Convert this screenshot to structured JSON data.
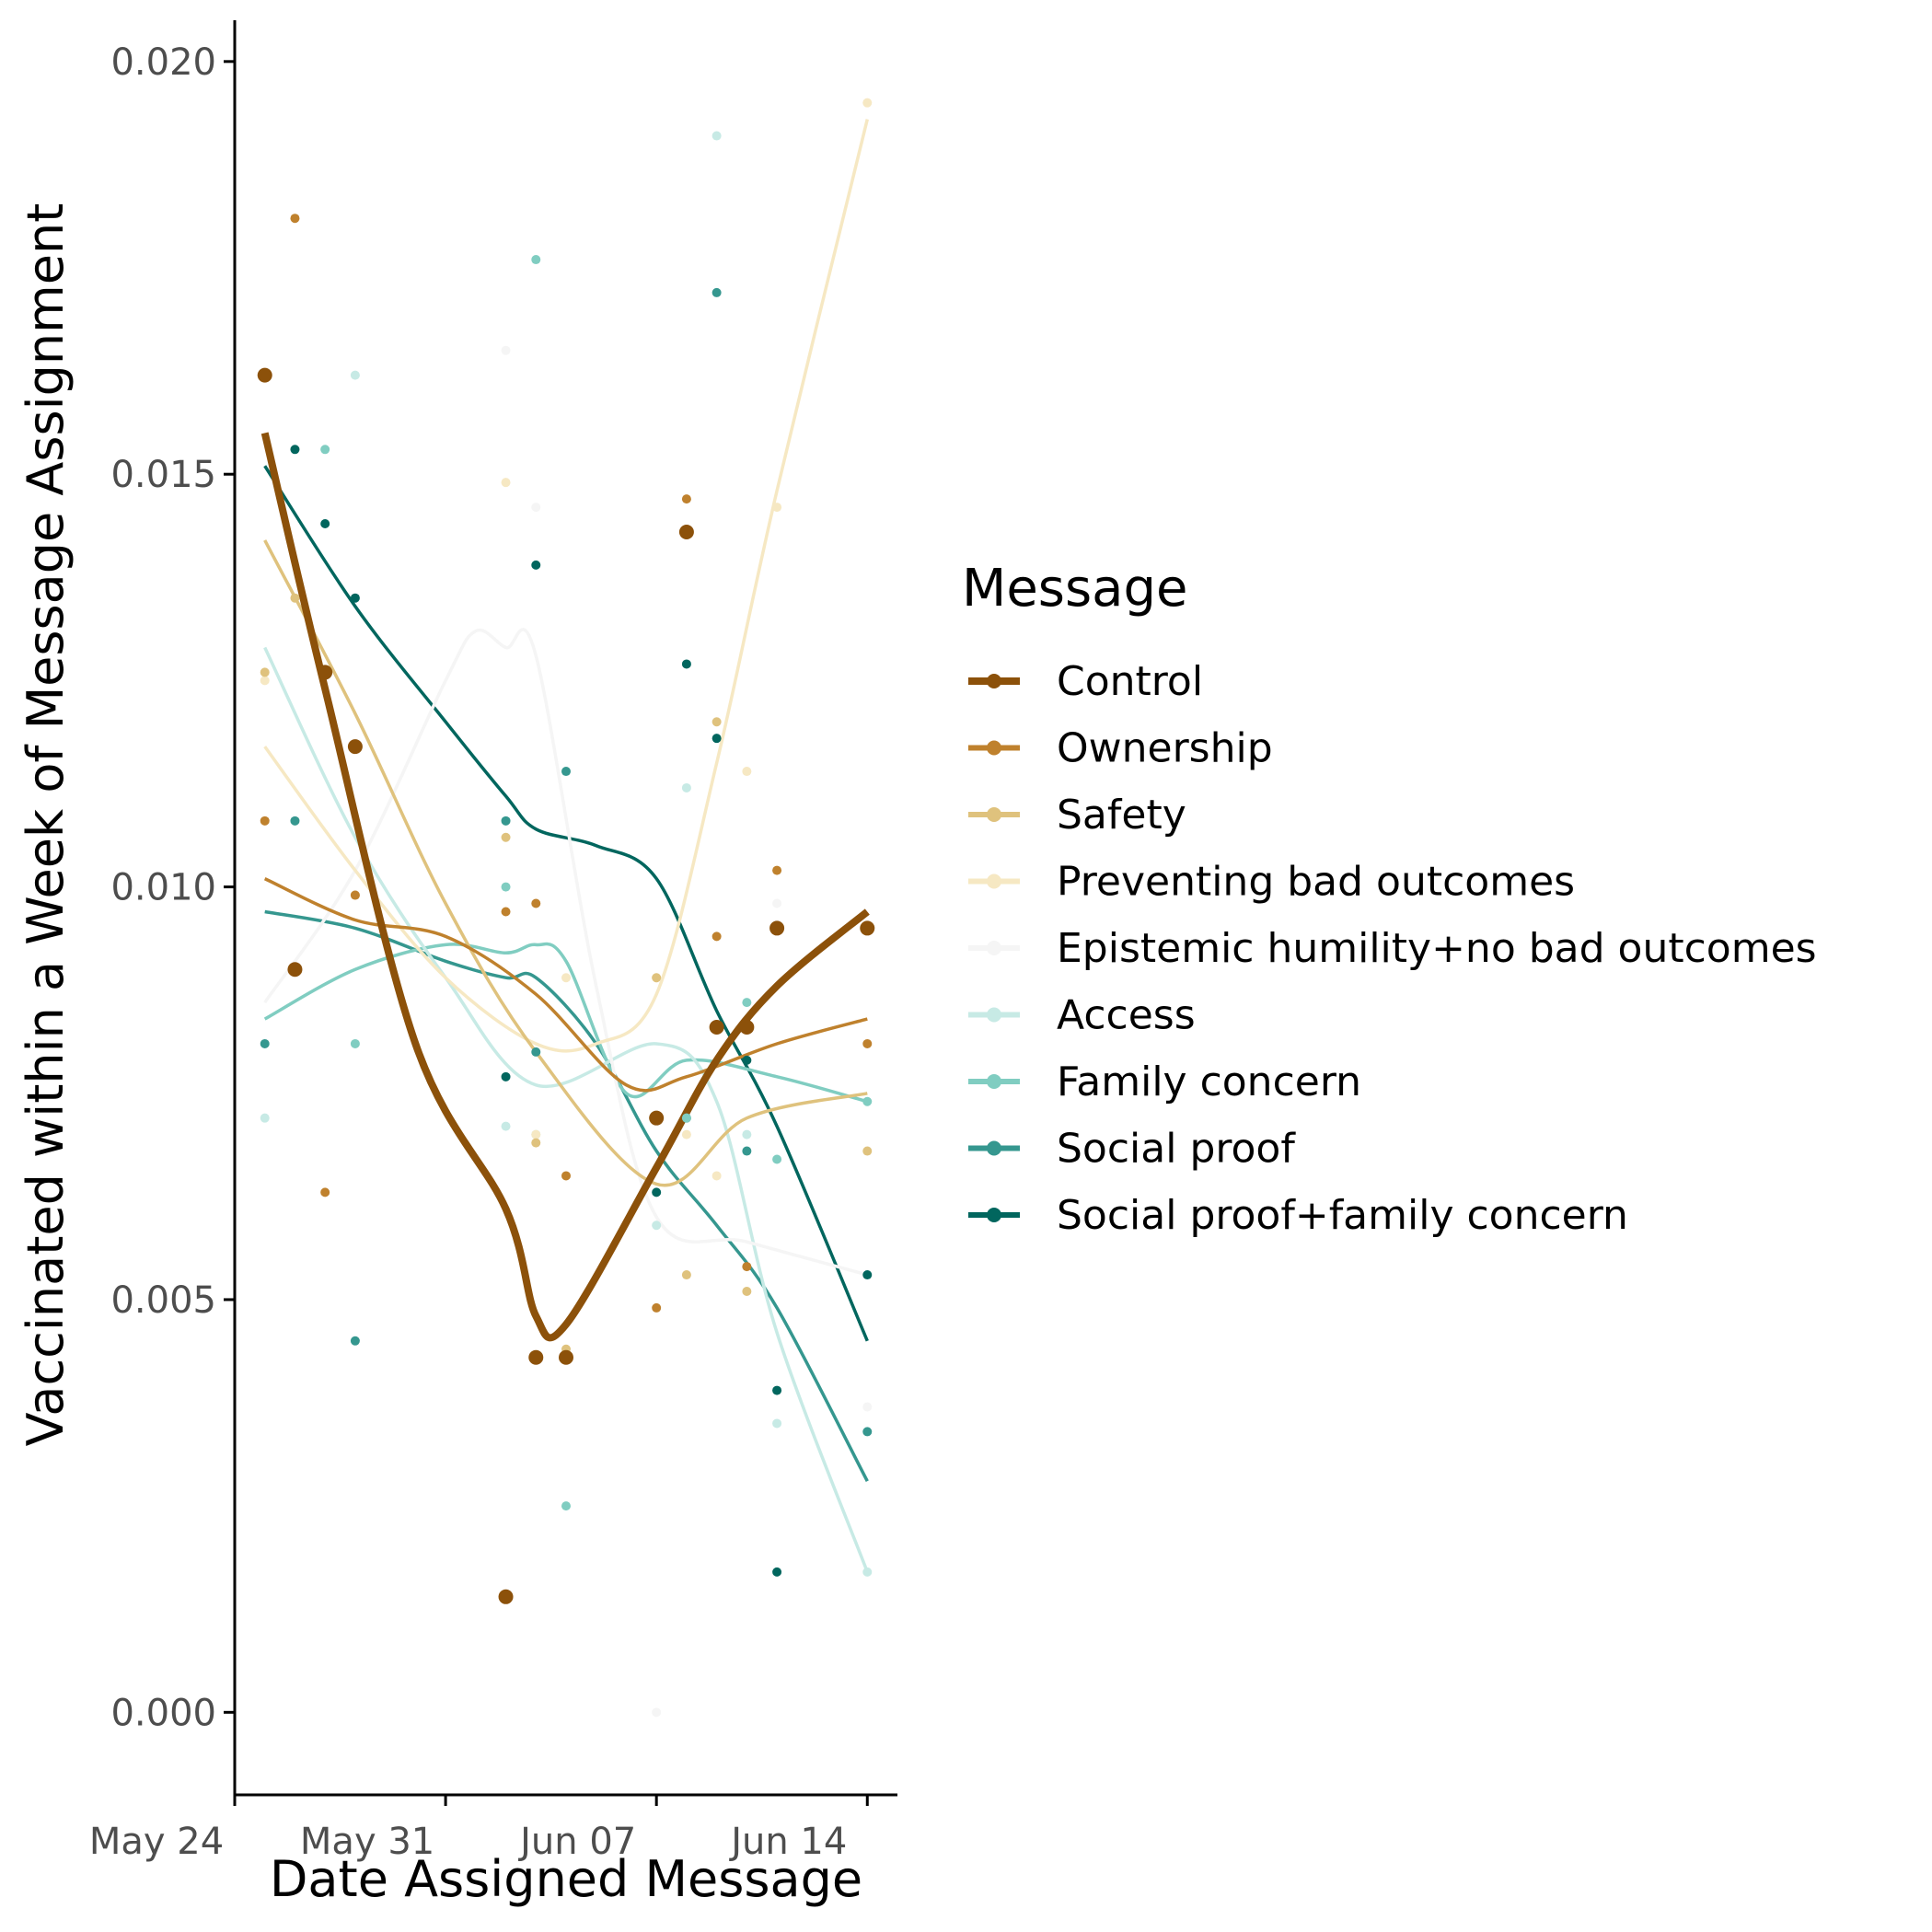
{
  "chart_data": {
    "type": "line",
    "xlabel": "Date Assigned Message",
    "ylabel": "Vaccinated within a Week of Message Assignment",
    "x_ticks": [
      "May 24",
      "May 31",
      "Jun 07",
      "Jun 14"
    ],
    "x_tick_values": [
      "2021-05-24",
      "2021-05-31",
      "2021-06-07",
      "2021-06-14"
    ],
    "xlim": [
      "2021-05-24",
      "2021-06-15"
    ],
    "y_ticks": [
      "0.000",
      "0.005",
      "0.010",
      "0.015",
      "0.020"
    ],
    "y_tick_values": [
      0,
      0.005,
      0.01,
      0.015,
      0.02
    ],
    "ylim": [
      -0.001,
      0.0205
    ],
    "grid": false,
    "legend": {
      "title": "Message",
      "position": "right"
    },
    "series": [
      {
        "name": "Control",
        "color": "#8c510a",
        "points": [
          [
            "2021-05-25",
            0.0162
          ],
          [
            "2021-05-26",
            0.009
          ],
          [
            "2021-05-27",
            0.0126
          ],
          [
            "2021-05-28",
            0.0117
          ],
          [
            "2021-06-02",
            0.0014
          ],
          [
            "2021-06-03",
            0.0043
          ],
          [
            "2021-06-04",
            0.0043
          ],
          [
            "2021-06-07",
            0.0072
          ],
          [
            "2021-06-08",
            0.0143
          ],
          [
            "2021-06-09",
            0.0083
          ],
          [
            "2021-06-10",
            0.0083
          ],
          [
            "2021-06-11",
            0.0095
          ],
          [
            "2021-06-14",
            0.0095
          ]
        ],
        "smooth": [
          [
            "2021-05-25",
            0.0155
          ],
          [
            "2021-05-27",
            0.0124
          ],
          [
            "2021-05-30",
            0.0081
          ],
          [
            "2021-06-02",
            0.0061
          ],
          [
            "2021-06-03",
            0.0048
          ],
          [
            "2021-06-04",
            0.0047
          ],
          [
            "2021-06-07",
            0.0066
          ],
          [
            "2021-06-09",
            0.0079
          ],
          [
            "2021-06-11",
            0.0088
          ],
          [
            "2021-06-14",
            0.0097
          ]
        ]
      },
      {
        "name": "Ownership",
        "color": "#bf812d",
        "points": [
          [
            "2021-05-25",
            0.0108
          ],
          [
            "2021-05-26",
            0.0181
          ],
          [
            "2021-05-27",
            0.0063
          ],
          [
            "2021-05-28",
            0.0099
          ],
          [
            "2021-06-02",
            0.0097
          ],
          [
            "2021-06-03",
            0.0098
          ],
          [
            "2021-06-04",
            0.0065
          ],
          [
            "2021-06-07",
            0.0049
          ],
          [
            "2021-06-08",
            0.0147
          ],
          [
            "2021-06-09",
            0.0094
          ],
          [
            "2021-06-10",
            0.0054
          ],
          [
            "2021-06-11",
            0.0102
          ],
          [
            "2021-06-14",
            0.0081
          ]
        ],
        "smooth": [
          [
            "2021-05-25",
            0.0101
          ],
          [
            "2021-05-28",
            0.0096
          ],
          [
            "2021-05-31",
            0.0094
          ],
          [
            "2021-06-03",
            0.0087
          ],
          [
            "2021-06-06",
            0.0076
          ],
          [
            "2021-06-08",
            0.0077
          ],
          [
            "2021-06-11",
            0.0081
          ],
          [
            "2021-06-14",
            0.0084
          ]
        ]
      },
      {
        "name": "Safety",
        "color": "#dfc27d",
        "points": [
          [
            "2021-05-25",
            0.0126
          ],
          [
            "2021-05-26",
            0.0135
          ],
          [
            "2021-05-28",
            0.0099
          ],
          [
            "2021-06-02",
            0.0106
          ],
          [
            "2021-06-03",
            0.0069
          ],
          [
            "2021-06-04",
            0.0044
          ],
          [
            "2021-06-07",
            0.0089
          ],
          [
            "2021-06-08",
            0.0053
          ],
          [
            "2021-06-09",
            0.012
          ],
          [
            "2021-06-10",
            0.0051
          ],
          [
            "2021-06-11",
            0.0095
          ],
          [
            "2021-06-14",
            0.0068
          ]
        ],
        "smooth": [
          [
            "2021-05-25",
            0.0142
          ],
          [
            "2021-05-28",
            0.0121
          ],
          [
            "2021-05-31",
            0.0098
          ],
          [
            "2021-06-03",
            0.008
          ],
          [
            "2021-06-07",
            0.0064
          ],
          [
            "2021-06-10",
            0.0072
          ],
          [
            "2021-06-14",
            0.0075
          ]
        ]
      },
      {
        "name": "Preventing bad outcomes",
        "color": "#f6e8c3",
        "points": [
          [
            "2021-05-25",
            0.0125
          ],
          [
            "2021-06-02",
            0.0149
          ],
          [
            "2021-06-03",
            0.007
          ],
          [
            "2021-06-04",
            0.0089
          ],
          [
            "2021-06-07",
            0.0089
          ],
          [
            "2021-06-08",
            0.007
          ],
          [
            "2021-06-09",
            0.0065
          ],
          [
            "2021-06-10",
            0.0114
          ],
          [
            "2021-06-11",
            0.0146
          ],
          [
            "2021-06-14",
            0.0195
          ]
        ],
        "smooth": [
          [
            "2021-05-25",
            0.0117
          ],
          [
            "2021-05-28",
            0.0102
          ],
          [
            "2021-05-31",
            0.0089
          ],
          [
            "2021-06-03",
            0.0081
          ],
          [
            "2021-06-05",
            0.0081
          ],
          [
            "2021-06-07",
            0.0087
          ],
          [
            "2021-06-09",
            0.0115
          ],
          [
            "2021-06-11",
            0.0148
          ],
          [
            "2021-06-14",
            0.0193
          ]
        ]
      },
      {
        "name": "Epistemic humility+no bad outcomes",
        "color": "#f5f5f5",
        "points": [
          [
            "2021-05-28",
            0.0099
          ],
          [
            "2021-06-02",
            0.0165
          ],
          [
            "2021-06-03",
            0.0146
          ],
          [
            "2021-06-07",
            0.0
          ],
          [
            "2021-06-11",
            0.0098
          ],
          [
            "2021-06-14",
            0.0037
          ]
        ],
        "smooth": [
          [
            "2021-05-25",
            0.0086
          ],
          [
            "2021-05-28",
            0.0102
          ],
          [
            "2021-05-31",
            0.0125
          ],
          [
            "2021-06-01",
            0.0131
          ],
          [
            "2021-06-02",
            0.0129
          ],
          [
            "2021-06-03",
            0.0128
          ],
          [
            "2021-06-05",
            0.0088
          ],
          [
            "2021-06-07",
            0.006
          ],
          [
            "2021-06-10",
            0.0057
          ],
          [
            "2021-06-14",
            0.0053
          ]
        ]
      },
      {
        "name": "Access",
        "color": "#c7eae5",
        "points": [
          [
            "2021-05-25",
            0.0072
          ],
          [
            "2021-05-26",
            0.009
          ],
          [
            "2021-05-28",
            0.0162
          ],
          [
            "2021-06-02",
            0.0071
          ],
          [
            "2021-06-03",
            0.007
          ],
          [
            "2021-06-07",
            0.0059
          ],
          [
            "2021-06-08",
            0.0112
          ],
          [
            "2021-06-09",
            0.0191
          ],
          [
            "2021-06-10",
            0.007
          ],
          [
            "2021-06-11",
            0.0035
          ],
          [
            "2021-06-14",
            0.0017
          ]
        ],
        "smooth": [
          [
            "2021-05-25",
            0.0129
          ],
          [
            "2021-05-28",
            0.0106
          ],
          [
            "2021-05-31",
            0.0089
          ],
          [
            "2021-06-03",
            0.0076
          ],
          [
            "2021-06-07",
            0.0081
          ],
          [
            "2021-06-09",
            0.0074
          ],
          [
            "2021-06-11",
            0.0046
          ],
          [
            "2021-06-14",
            0.0017
          ]
        ]
      },
      {
        "name": "Family concern",
        "color": "#80cdc1",
        "points": [
          [
            "2021-05-27",
            0.0153
          ],
          [
            "2021-05-28",
            0.0081
          ],
          [
            "2021-06-02",
            0.01
          ],
          [
            "2021-06-03",
            0.0176
          ],
          [
            "2021-06-04",
            0.0025
          ],
          [
            "2021-06-08",
            0.0072
          ],
          [
            "2021-06-10",
            0.0086
          ],
          [
            "2021-06-11",
            0.0067
          ],
          [
            "2021-06-14",
            0.0074
          ]
        ],
        "smooth": [
          [
            "2021-05-25",
            0.0084
          ],
          [
            "2021-05-28",
            0.009
          ],
          [
            "2021-05-31",
            0.0093
          ],
          [
            "2021-06-02",
            0.0092
          ],
          [
            "2021-06-03",
            0.0093
          ],
          [
            "2021-06-04",
            0.0091
          ],
          [
            "2021-06-06",
            0.0075
          ],
          [
            "2021-06-08",
            0.0079
          ],
          [
            "2021-06-11",
            0.0077
          ],
          [
            "2021-06-14",
            0.0074
          ]
        ]
      },
      {
        "name": "Social proof",
        "color": "#35978f",
        "points": [
          [
            "2021-05-25",
            0.0081
          ],
          [
            "2021-05-26",
            0.0108
          ],
          [
            "2021-05-28",
            0.0045
          ],
          [
            "2021-06-02",
            0.0108
          ],
          [
            "2021-06-03",
            0.008
          ],
          [
            "2021-06-04",
            0.0114
          ],
          [
            "2021-06-08",
            0.0072
          ],
          [
            "2021-06-09",
            0.0172
          ],
          [
            "2021-06-10",
            0.0068
          ],
          [
            "2021-06-14",
            0.0034
          ]
        ],
        "smooth": [
          [
            "2021-05-25",
            0.0097
          ],
          [
            "2021-05-28",
            0.0095
          ],
          [
            "2021-05-31",
            0.0091
          ],
          [
            "2021-06-02",
            0.0089
          ],
          [
            "2021-06-03",
            0.0089
          ],
          [
            "2021-06-05",
            0.0081
          ],
          [
            "2021-06-07",
            0.0068
          ],
          [
            "2021-06-09",
            0.0059
          ],
          [
            "2021-06-11",
            0.0049
          ],
          [
            "2021-06-14",
            0.0028
          ]
        ]
      },
      {
        "name": "Social proof+family concern",
        "color": "#01665e",
        "points": [
          [
            "2021-05-25",
            0.0162
          ],
          [
            "2021-05-26",
            0.0153
          ],
          [
            "2021-05-27",
            0.0144
          ],
          [
            "2021-05-28",
            0.0135
          ],
          [
            "2021-06-02",
            0.0077
          ],
          [
            "2021-06-03",
            0.0139
          ],
          [
            "2021-06-07",
            0.0063
          ],
          [
            "2021-06-08",
            0.0127
          ],
          [
            "2021-06-09",
            0.0118
          ],
          [
            "2021-06-10",
            0.0079
          ],
          [
            "2021-06-11",
            0.0039
          ],
          [
            "2021-06-11",
            0.0017
          ],
          [
            "2021-06-14",
            0.0053
          ]
        ],
        "smooth": [
          [
            "2021-05-25",
            0.0151
          ],
          [
            "2021-05-28",
            0.0134
          ],
          [
            "2021-05-31",
            0.012
          ],
          [
            "2021-06-02",
            0.0111
          ],
          [
            "2021-06-03",
            0.0107
          ],
          [
            "2021-06-05",
            0.0105
          ],
          [
            "2021-06-07",
            0.0101
          ],
          [
            "2021-06-09",
            0.0085
          ],
          [
            "2021-06-11",
            0.0071
          ],
          [
            "2021-06-14",
            0.0045
          ]
        ]
      }
    ]
  }
}
